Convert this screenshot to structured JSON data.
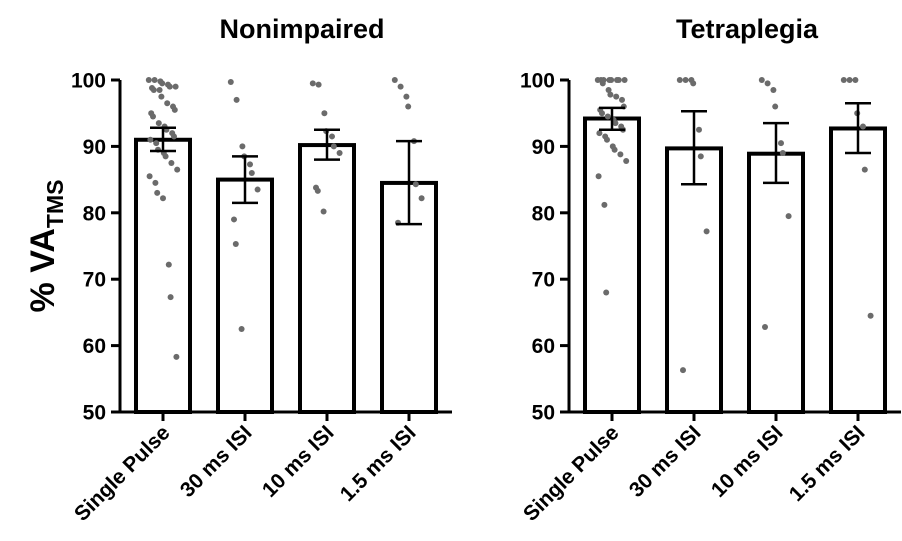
{
  "chart_data": [
    {
      "type": "bar",
      "title": "Nonimpaired",
      "ylabel": "% VA",
      "ylabel_subscript": "TMS",
      "ylim": [
        50,
        100
      ],
      "yticks": [
        "50",
        "60",
        "70",
        "80",
        "90",
        "100"
      ],
      "categories": [
        "Single Pulse",
        "30 ms ISI",
        "10 ms ISI",
        "1.5 ms ISI"
      ],
      "values": [
        91.0,
        85.0,
        90.2,
        84.5
      ],
      "error_low": [
        89.3,
        81.5,
        88.0,
        78.3
      ],
      "error_high": [
        92.8,
        88.5,
        92.5,
        90.8
      ],
      "points": [
        [
          100,
          100,
          99.8,
          99.5,
          99.3,
          99.0,
          99.0,
          98.8,
          98.5,
          98.5,
          97.5,
          96.5,
          96.0,
          95.5,
          95.0,
          94.5,
          93.5,
          93.0,
          92.5,
          92.0,
          91.5,
          91.0,
          90.5,
          89.5,
          89.0,
          88.5,
          87.5,
          86.5,
          85.5,
          84.5,
          83.0,
          82.2,
          72.2,
          67.3,
          58.3
        ],
        [
          99.7,
          97.0,
          90.0,
          88.5,
          87.3,
          86.0,
          83.5,
          79.0,
          75.3,
          62.5
        ],
        [
          99.5,
          99.3,
          95.0,
          92.3,
          91.5,
          90.0,
          89.0,
          83.8,
          83.3,
          80.2
        ],
        [
          100,
          99.0,
          97.5,
          96.0,
          90.8,
          84.3,
          82.2,
          78.5
        ]
      ]
    },
    {
      "type": "bar",
      "title": "Tetraplegia",
      "ylim": [
        50,
        100
      ],
      "yticks": [
        "50",
        "60",
        "70",
        "80",
        "90",
        "100"
      ],
      "categories": [
        "Single Pulse",
        "30 ms ISI",
        "10 ms ISI",
        "1.5 ms ISI"
      ],
      "values": [
        94.2,
        89.7,
        88.9,
        92.7
      ],
      "error_low": [
        92.5,
        84.3,
        84.5,
        89.0
      ],
      "error_high": [
        95.8,
        95.3,
        93.5,
        96.5
      ],
      "points": [
        [
          100,
          100,
          100,
          100,
          100,
          100,
          100,
          100,
          99.5,
          98.5,
          97.8,
          97.5,
          97.0,
          96.0,
          95.5,
          95.0,
          94.5,
          94.0,
          93.5,
          93.0,
          92.5,
          92.0,
          91.5,
          91.0,
          90.0,
          89.5,
          88.8,
          87.8,
          85.5,
          81.2,
          68.0
        ],
        [
          100,
          100,
          100,
          99.5,
          92.5,
          88.5,
          77.2,
          56.3
        ],
        [
          100,
          99.5,
          98.5,
          96.0,
          90.5,
          89.0,
          79.5,
          62.8
        ],
        [
          100,
          100,
          100,
          95.0,
          93.0,
          86.5,
          64.5
        ]
      ]
    }
  ]
}
